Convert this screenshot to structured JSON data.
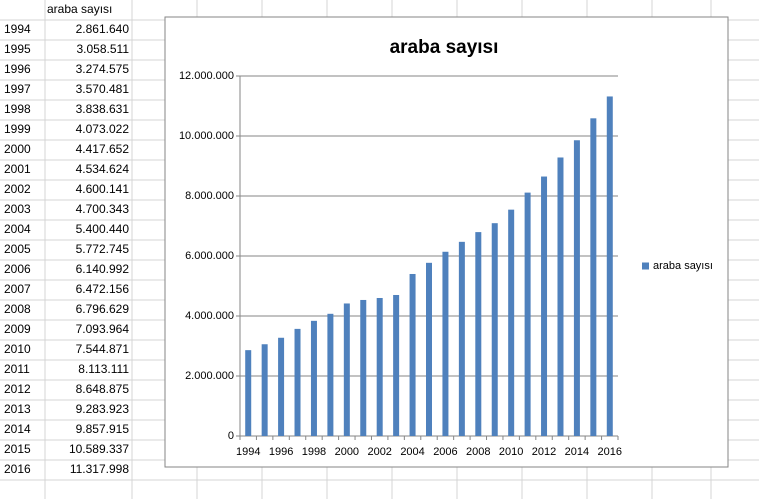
{
  "table": {
    "header": "araba sayısı",
    "rows": [
      [
        "1994",
        "2.861.640"
      ],
      [
        "1995",
        "3.058.511"
      ],
      [
        "1996",
        "3.274.575"
      ],
      [
        "1997",
        "3.570.481"
      ],
      [
        "1998",
        "3.838.631"
      ],
      [
        "1999",
        "4.073.022"
      ],
      [
        "2000",
        "4.417.652"
      ],
      [
        "2001",
        "4.534.624"
      ],
      [
        "2002",
        "4.600.141"
      ],
      [
        "2003",
        "4.700.343"
      ],
      [
        "2004",
        "5.400.440"
      ],
      [
        "2005",
        "5.772.745"
      ],
      [
        "2006",
        "6.140.992"
      ],
      [
        "2007",
        "6.472.156"
      ],
      [
        "2008",
        "6.796.629"
      ],
      [
        "2009",
        "7.093.964"
      ],
      [
        "2010",
        "7.544.871"
      ],
      [
        "2011",
        "8.113.111"
      ],
      [
        "2012",
        "8.648.875"
      ],
      [
        "2013",
        "9.283.923"
      ],
      [
        "2014",
        "9.857.915"
      ],
      [
        "2015",
        "10.589.337"
      ],
      [
        "2016",
        "11.317.998"
      ]
    ]
  },
  "chart_data": {
    "type": "bar",
    "title": "araba sayısı",
    "categories": [
      1994,
      null,
      1996,
      null,
      1998,
      null,
      2000,
      null,
      2002,
      null,
      2004,
      null,
      2006,
      null,
      2008,
      null,
      2010,
      null,
      2012,
      null,
      2014,
      null,
      2016
    ],
    "series": [
      {
        "name": "araba sayısı",
        "color": "#4f81bd",
        "values": [
          2861640,
          3058511,
          3274575,
          3570481,
          3838631,
          4073022,
          4417652,
          4534624,
          4600141,
          4700343,
          5400440,
          5772745,
          6140992,
          6472156,
          6796629,
          7093964,
          7544871,
          8113111,
          8648875,
          9283923,
          9857915,
          10589337,
          11317998
        ]
      }
    ],
    "ylim": [
      0,
      12000000
    ],
    "yticks": [
      0,
      {
        "value": 2000000,
        "label": "2.000.000"
      },
      {
        "value": 4000000,
        "label": "4.000.000"
      },
      {
        "value": 6000000,
        "label": "6.000.000"
      },
      {
        "value": 8000000,
        "label": "8.000.000"
      },
      {
        "value": 10000000,
        "label": "10.000.000"
      },
      {
        "value": 12000000,
        "label": "12.000.000"
      }
    ],
    "grid": true,
    "legend": "right"
  }
}
